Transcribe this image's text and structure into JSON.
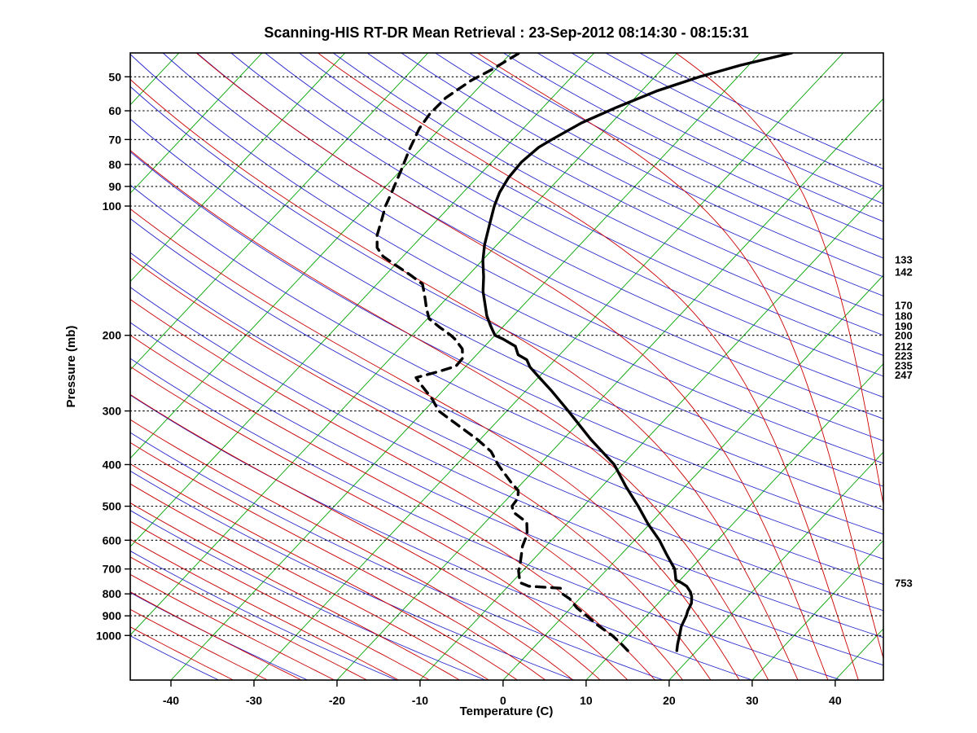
{
  "chart_data": {
    "type": "line",
    "diagram": "skew-t-log-p (45-degree skewed isotherms, log pressure axis)",
    "title": "Scanning-HIS RT-DR Mean Retrieval : 23-Sep-2012 08:14:30 - 08:15:31",
    "xlabel": "Temperature (C)",
    "ylabel": "Pressure (mb)",
    "x_tick_values": [
      -40,
      -30,
      -20,
      -10,
      0,
      10,
      20,
      30,
      40
    ],
    "pressure_tick_values": [
      50,
      60,
      70,
      80,
      90,
      100,
      200,
      300,
      400,
      500,
      600,
      700,
      800,
      900,
      1000
    ],
    "pressure_axis_range_mb": [
      44,
      1270
    ],
    "surface_temp_axis_range_c": [
      -44.9,
      45.8
    ],
    "right_edge_level_labels_mb": [
      133,
      142,
      170,
      180,
      190,
      200,
      212,
      223,
      235,
      247,
      753
    ],
    "grid": {
      "isotherms_c": {
        "start": -120,
        "end": 40,
        "step": 10,
        "color": "#00A400"
      },
      "dry_adiabats_theta_c": {
        "start": -60,
        "end": 260,
        "step": 10,
        "color": "#2222CC"
      },
      "moist_adiabats_start_c": {
        "start": -48,
        "end": 44,
        "step": 4,
        "color": "#CC0000"
      },
      "isobars": {
        "color": "#000000",
        "style": "dotted"
      }
    },
    "series": [
      {
        "name": "temperature",
        "line": "solid",
        "color": "#000000",
        "points_p_t": [
          [
            1085,
            17.6
          ],
          [
            1050,
            17.0
          ],
          [
            1000,
            16.2
          ],
          [
            953,
            15.4
          ],
          [
            900,
            14.8
          ],
          [
            876,
            14.4
          ],
          [
            842,
            14.0
          ],
          [
            813,
            13.3
          ],
          [
            792,
            12.6
          ],
          [
            768,
            11.5
          ],
          [
            753,
            10.4
          ],
          [
            743,
            9.5
          ],
          [
            700,
            8.1
          ],
          [
            650,
            5.6
          ],
          [
            600,
            3.0
          ],
          [
            550,
            -0.2
          ],
          [
            500,
            -3.4
          ],
          [
            450,
            -7.1
          ],
          [
            400,
            -11.0
          ],
          [
            350,
            -16.6
          ],
          [
            300,
            -22.6
          ],
          [
            270,
            -26.8
          ],
          [
            250,
            -30.0
          ],
          [
            237,
            -32.2
          ],
          [
            228,
            -33.4
          ],
          [
            222,
            -35.0
          ],
          [
            212,
            -36.3
          ],
          [
            204,
            -38.6
          ],
          [
            200,
            -40.0
          ],
          [
            190,
            -41.6
          ],
          [
            180,
            -43.2
          ],
          [
            170,
            -44.6
          ],
          [
            158,
            -46.4
          ],
          [
            146,
            -48.0
          ],
          [
            134,
            -49.9
          ],
          [
            123,
            -51.5
          ],
          [
            111,
            -53.1
          ],
          [
            100,
            -54.7
          ],
          [
            93,
            -55.6
          ],
          [
            86,
            -56.2
          ],
          [
            79,
            -56.4
          ],
          [
            73,
            -56.0
          ],
          [
            70,
            -55.3
          ],
          [
            64,
            -53.6
          ],
          [
            59,
            -51.2
          ],
          [
            54,
            -48.2
          ],
          [
            50,
            -44.6
          ],
          [
            47,
            -41.0
          ],
          [
            44,
            -36.2
          ]
        ]
      },
      {
        "name": "dewpoint",
        "line": "dashed",
        "color": "#000000",
        "points_p_t": [
          [
            1085,
            11.7
          ],
          [
            1050,
            10.3
          ],
          [
            1000,
            8.1
          ],
          [
            943,
            5.0
          ],
          [
            900,
            2.8
          ],
          [
            862,
            0.7
          ],
          [
            821,
            -1.2
          ],
          [
            800,
            -2.6
          ],
          [
            776,
            -3.5
          ],
          [
            768,
            -7.5
          ],
          [
            753,
            -9.0
          ],
          [
            707,
            -10.5
          ],
          [
            677,
            -11.2
          ],
          [
            620,
            -12.8
          ],
          [
            581,
            -13.6
          ],
          [
            545,
            -15.0
          ],
          [
            517,
            -17.7
          ],
          [
            500,
            -18.6
          ],
          [
            479,
            -18.8
          ],
          [
            460,
            -19.6
          ],
          [
            440,
            -21.4
          ],
          [
            400,
            -25.0
          ],
          [
            373,
            -27.3
          ],
          [
            349,
            -30.4
          ],
          [
            320,
            -34.9
          ],
          [
            300,
            -38.2
          ],
          [
            281,
            -40.4
          ],
          [
            260,
            -43.4
          ],
          [
            251,
            -44.7
          ],
          [
            243,
            -42.7
          ],
          [
            236,
            -41.2
          ],
          [
            226,
            -41.3
          ],
          [
            215,
            -42.4
          ],
          [
            204,
            -44.4
          ],
          [
            200,
            -45.3
          ],
          [
            191,
            -47.7
          ],
          [
            183,
            -49.8
          ],
          [
            173,
            -51.3
          ],
          [
            164,
            -52.6
          ],
          [
            152,
            -54.5
          ],
          [
            145,
            -56.9
          ],
          [
            137,
            -60.0
          ],
          [
            131,
            -62.4
          ],
          [
            125,
            -64.1
          ],
          [
            117,
            -65.5
          ],
          [
            107,
            -66.8
          ],
          [
            100,
            -67.8
          ],
          [
            93,
            -68.6
          ],
          [
            83,
            -69.9
          ],
          [
            74,
            -71.3
          ],
          [
            66,
            -72.5
          ],
          [
            61,
            -72.9
          ],
          [
            56,
            -72.8
          ],
          [
            51,
            -71.7
          ],
          [
            48,
            -70.4
          ],
          [
            44,
            -69.0
          ]
        ]
      }
    ]
  }
}
